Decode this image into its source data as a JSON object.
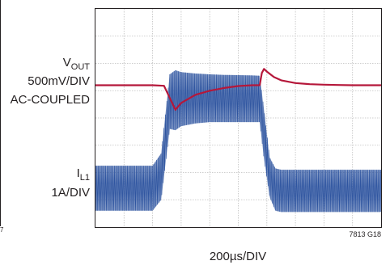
{
  "chart_data": {
    "type": "line",
    "title": "",
    "xlabel": "200µs/DIV",
    "ylabel": "",
    "grid": true,
    "divisions": {
      "x": 10,
      "y": 8
    },
    "x_unit": "µs",
    "xlim": [
      0,
      2000
    ],
    "figure_id": "7813 G18",
    "left_edge_fragments": [
      "7"
    ],
    "series": [
      {
        "name": "V_OUT",
        "label_main": "V",
        "label_sub": "OUT",
        "scale": "500mV/DIV",
        "coupling": "AC-COUPLED",
        "color": "#b5173a",
        "x": [
          0,
          200,
          400,
          480,
          560,
          600,
          700,
          800,
          900,
          1000,
          1100,
          1150,
          1165,
          1180,
          1200,
          1250,
          1300,
          1400,
          1500,
          1600,
          1700,
          1800,
          1900,
          2000
        ],
        "y": [
          5.2,
          5.2,
          5.2,
          5.18,
          4.3,
          4.55,
          4.85,
          5.0,
          5.1,
          5.17,
          5.2,
          5.2,
          5.65,
          5.8,
          5.7,
          5.5,
          5.38,
          5.28,
          5.24,
          5.22,
          5.21,
          5.2,
          5.2,
          5.2
        ]
      },
      {
        "name": "I_L1",
        "label_main": "I",
        "label_sub": "L1",
        "scale": "1A/DIV",
        "color": "#2f55a0",
        "envelope_x": [
          0,
          400,
          460,
          520,
          560,
          600,
          700,
          800,
          900,
          1000,
          1100,
          1150,
          1180,
          1220,
          1260,
          1300,
          1400,
          1500,
          1600,
          1700,
          1800,
          1900,
          2000
        ],
        "envelope_high": [
          2.25,
          2.25,
          2.7,
          5.6,
          5.75,
          5.68,
          5.63,
          5.6,
          5.58,
          5.57,
          5.56,
          5.55,
          4.3,
          2.55,
          2.15,
          2.1,
          2.1,
          2.1,
          2.1,
          2.1,
          2.1,
          2.1,
          2.1
        ],
        "envelope_low": [
          0.6,
          0.6,
          1.0,
          3.6,
          3.55,
          3.7,
          3.8,
          3.85,
          3.85,
          3.85,
          3.85,
          3.85,
          2.5,
          1.1,
          0.6,
          0.55,
          0.55,
          0.55,
          0.55,
          0.55,
          0.55,
          0.55,
          0.55
        ]
      }
    ]
  }
}
